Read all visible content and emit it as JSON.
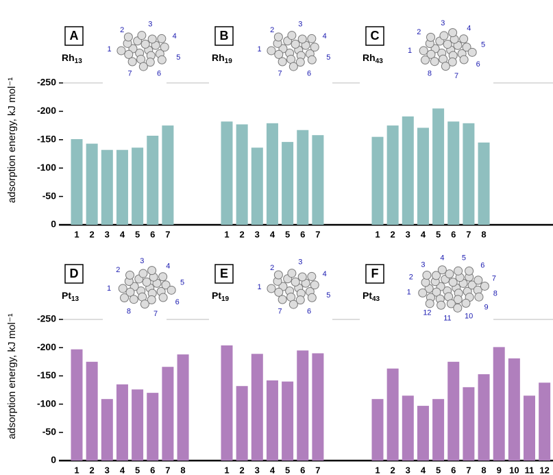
{
  "chart_data": [
    {
      "type": "bar",
      "ylabel": "adsorption energy, kJ mol⁻¹",
      "ylim": [
        0,
        -250
      ],
      "yticks": [
        0,
        -50,
        -100,
        -150,
        -200,
        -250
      ],
      "color": "#8fbfbf",
      "groups": [
        {
          "panel": "A",
          "element": "Rh",
          "size": "13",
          "categories": [
            "1",
            "2",
            "3",
            "4",
            "5",
            "6",
            "7"
          ],
          "values": [
            -151,
            -143,
            -132,
            -132,
            -136,
            -157,
            -175
          ]
        },
        {
          "panel": "B",
          "element": "Rh",
          "size": "19",
          "categories": [
            "1",
            "2",
            "3",
            "4",
            "5",
            "6",
            "7"
          ],
          "values": [
            -182,
            -177,
            -136,
            -179,
            -146,
            -167,
            -158
          ]
        },
        {
          "panel": "C",
          "element": "Rh",
          "size": "43",
          "categories": [
            "1",
            "2",
            "3",
            "4",
            "5",
            "6",
            "7",
            "8"
          ],
          "values": [
            -155,
            -175,
            -191,
            -171,
            -205,
            -182,
            -179,
            -145
          ]
        }
      ]
    },
    {
      "type": "bar",
      "ylabel": "adsorption energy, kJ mol⁻¹",
      "ylim": [
        0,
        -250
      ],
      "yticks": [
        0,
        -50,
        -100,
        -150,
        -200,
        -250
      ],
      "color": "#b07fbd",
      "groups": [
        {
          "panel": "D",
          "element": "Pt",
          "size": "13",
          "categories": [
            "1",
            "2",
            "3",
            "4",
            "5",
            "6",
            "7",
            "8"
          ],
          "values": [
            -197,
            -175,
            -109,
            -135,
            -126,
            -120,
            -166,
            -188
          ]
        },
        {
          "panel": "E",
          "element": "Pt",
          "size": "19",
          "categories": [
            "1",
            "2",
            "3",
            "4",
            "5",
            "6",
            "7"
          ],
          "values": [
            -204,
            -132,
            -189,
            -142,
            -140,
            -195,
            -190
          ]
        },
        {
          "panel": "F",
          "element": "Pt",
          "size": "43",
          "categories": [
            "1",
            "2",
            "3",
            "4",
            "5",
            "6",
            "7",
            "8",
            "9",
            "10",
            "11",
            "12"
          ],
          "values": [
            -109,
            -163,
            -115,
            -97,
            -109,
            -175,
            -130,
            -153,
            -201,
            -181,
            -115,
            -138
          ]
        }
      ]
    }
  ]
}
